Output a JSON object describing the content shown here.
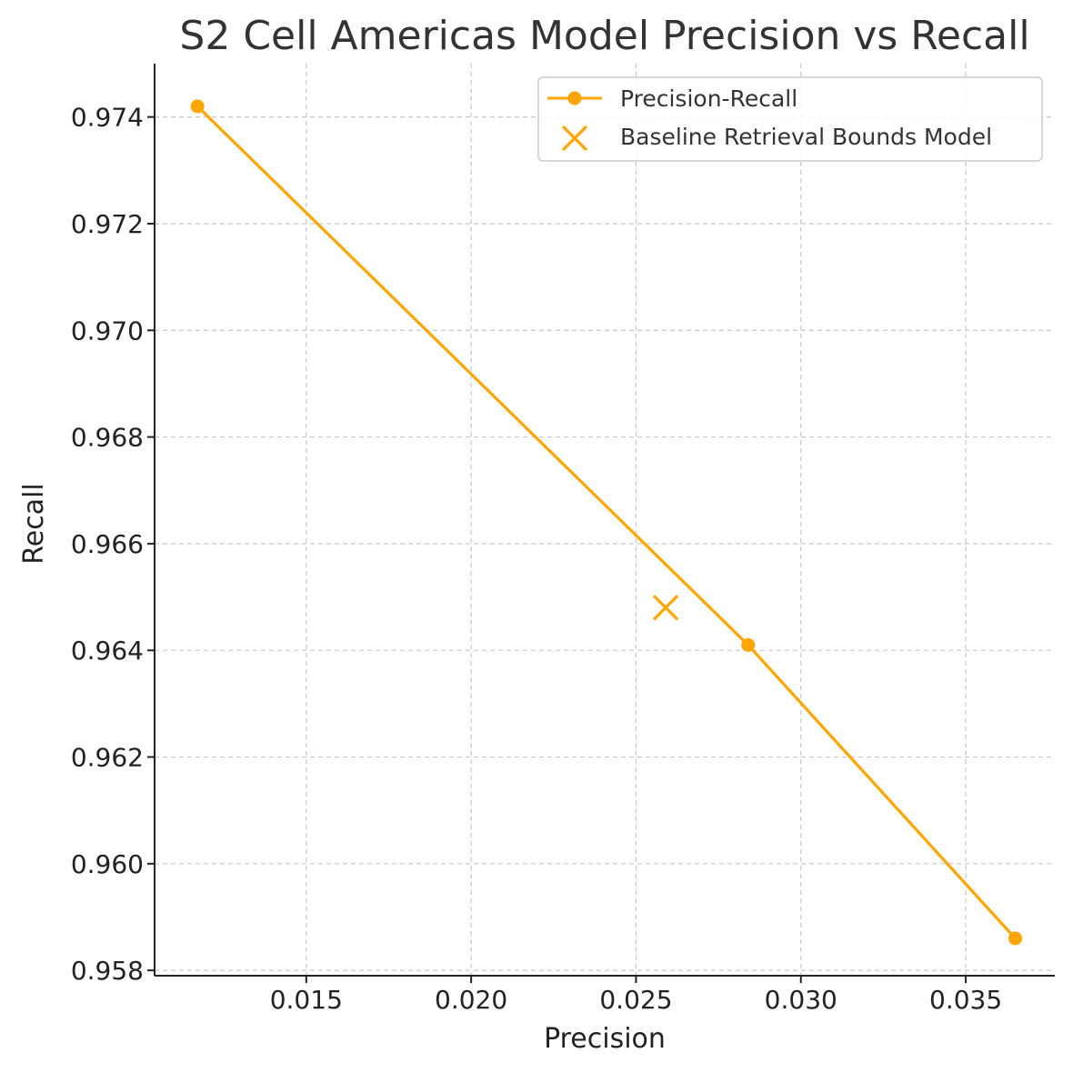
{
  "chart_data": {
    "type": "line",
    "title": "S2 Cell Americas Model Precision vs Recall",
    "xlabel": "Precision",
    "ylabel": "Recall",
    "xlim": [
      0.0104,
      0.0377
    ],
    "ylim": [
      0.9579,
      0.975
    ],
    "xticks": [
      0.015,
      0.02,
      0.025,
      0.03,
      0.035
    ],
    "xtick_labels": [
      "0.015",
      "0.020",
      "0.025",
      "0.030",
      "0.035"
    ],
    "yticks": [
      0.958,
      0.96,
      0.962,
      0.964,
      0.966,
      0.968,
      0.97,
      0.972,
      0.974
    ],
    "ytick_labels": [
      "0.958",
      "0.960",
      "0.962",
      "0.964",
      "0.966",
      "0.968",
      "0.970",
      "0.972",
      "0.974"
    ],
    "grid": true,
    "legend_position": "top-right",
    "series": [
      {
        "name": "Precision-Recall",
        "kind": "line-with-markers",
        "color": "#FFA500",
        "x": [
          0.0117,
          0.0284,
          0.0365
        ],
        "y": [
          0.9742,
          0.9641,
          0.9586
        ]
      },
      {
        "name": "Baseline Retrieval Bounds Model",
        "kind": "x-marker",
        "color": "#FFA500",
        "x": [
          0.0259
        ],
        "y": [
          0.9648
        ]
      }
    ]
  }
}
